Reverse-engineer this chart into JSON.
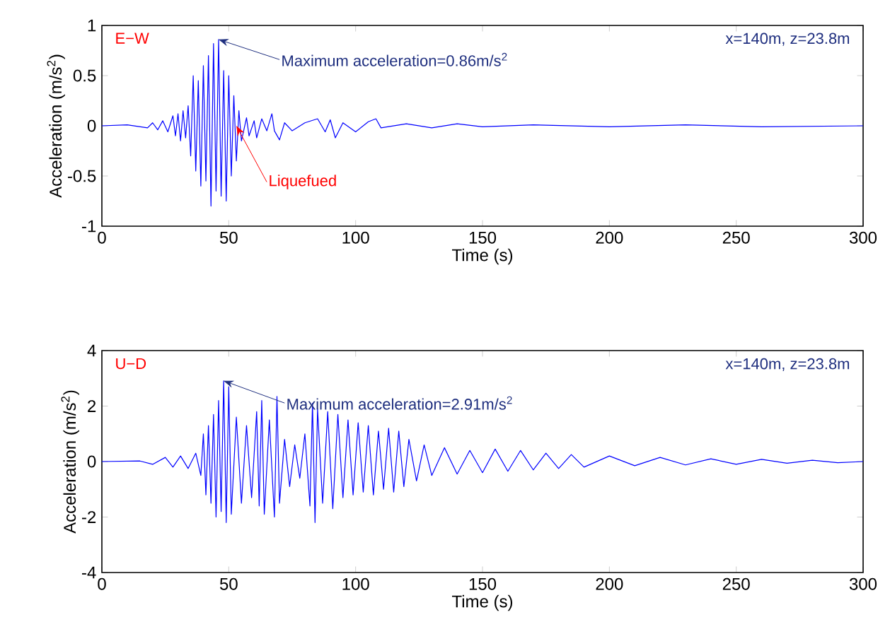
{
  "chart_data": [
    {
      "type": "line",
      "xlabel": "Time (s)",
      "ylabel": "Acceleration (m/s$^{2}$)",
      "xlim": [
        0,
        300
      ],
      "ylim": [
        -1,
        1
      ],
      "xticks": [
        0,
        50,
        100,
        150,
        200,
        250,
        300
      ],
      "yticks": [
        -1,
        -0.5,
        0,
        0.5,
        1
      ],
      "series": [
        {
          "color": "#0000ff",
          "x": [
            0,
            10,
            18,
            20,
            22,
            24,
            26,
            28,
            29,
            30,
            31,
            32,
            33,
            34,
            35,
            36,
            37,
            38,
            39,
            40,
            41,
            42,
            43,
            44,
            45,
            46,
            47,
            48,
            49,
            50,
            51,
            52,
            53,
            54,
            55,
            57,
            58,
            60,
            61,
            63,
            65,
            67,
            68,
            70,
            72,
            75,
            80,
            85,
            88,
            90,
            92,
            95,
            100,
            105,
            108,
            110,
            120,
            130,
            140,
            150,
            170,
            200,
            230,
            260,
            300
          ],
          "values": [
            0,
            0.01,
            -0.02,
            0.03,
            -0.04,
            0.05,
            -0.06,
            0.1,
            -0.1,
            0.12,
            -0.15,
            0.15,
            -0.12,
            0.2,
            -0.3,
            0.5,
            -0.45,
            0.45,
            -0.6,
            0.6,
            -0.55,
            0.7,
            -0.8,
            0.82,
            -0.65,
            0.86,
            -0.7,
            0.55,
            -0.75,
            0.5,
            -0.5,
            0.3,
            -0.35,
            0.15,
            -0.15,
            0.08,
            -0.1,
            0.05,
            -0.12,
            0.07,
            -0.05,
            0.12,
            -0.05,
            -0.14,
            0.03,
            -0.05,
            0.03,
            0.07,
            -0.06,
            0.06,
            -0.12,
            0.03,
            -0.06,
            0.04,
            0.07,
            -0.02,
            0.02,
            -0.02,
            0.02,
            -0.01,
            0.01,
            -0.01,
            0.01,
            -0.01,
            0
          ]
        }
      ],
      "annotations": [
        "E−W",
        "x=140m, z=23.8m",
        {
          "text": "Maximum acceleration=0.86m/s$^{2}$",
          "x": 46,
          "y": 0.86
        },
        {
          "text": "Liquefued",
          "x": 53,
          "y": 0
        }
      ]
    },
    {
      "type": "line",
      "xlabel": "Time (s)",
      "ylabel": "Acceleration (m/s$^{2}$)",
      "xlim": [
        0,
        300
      ],
      "ylim": [
        -4,
        4
      ],
      "xticks": [
        0,
        50,
        100,
        150,
        200,
        250,
        300
      ],
      "yticks": [
        -4,
        -2,
        0,
        2,
        4
      ],
      "series": [
        {
          "color": "#0000ff",
          "x": [
            0,
            15,
            20,
            25,
            28,
            31,
            34,
            37,
            39,
            40,
            41,
            42,
            43,
            44,
            45,
            46,
            47,
            48,
            49,
            50,
            51,
            53,
            55,
            57,
            59,
            61,
            62,
            63,
            64,
            66,
            68,
            69,
            70,
            72,
            74,
            76,
            78,
            80,
            82,
            83,
            84,
            85,
            87,
            89,
            91,
            93,
            95,
            97,
            99,
            101,
            103,
            105,
            107,
            109,
            111,
            113,
            115,
            117,
            119,
            121,
            124,
            127,
            130,
            135,
            140,
            145,
            150,
            155,
            160,
            165,
            170,
            175,
            180,
            185,
            190,
            200,
            210,
            220,
            230,
            240,
            250,
            260,
            270,
            280,
            290,
            300
          ],
          "values": [
            0,
            0.02,
            -0.1,
            0.15,
            -0.2,
            0.2,
            -0.25,
            0.3,
            -0.5,
            1,
            -1.2,
            1.3,
            -1.5,
            1.7,
            -2,
            2.2,
            -1.8,
            2.91,
            -2.2,
            2.7,
            -1.9,
            1.6,
            -1.5,
            1.3,
            -1.3,
            1.8,
            -1.6,
            2.2,
            -1.9,
            1.5,
            -2,
            2.35,
            -1.5,
            0.8,
            -0.9,
            0.6,
            -0.6,
            1,
            -1.6,
            2.1,
            -2.2,
            1.9,
            -1.5,
            1.8,
            -1.7,
            1.7,
            -1.3,
            1.5,
            -1.2,
            1.4,
            -1.1,
            1.3,
            -1.2,
            1.1,
            -1.0,
            1.2,
            -1.1,
            1.1,
            -0.9,
            0.8,
            -0.7,
            0.6,
            -0.5,
            0.5,
            -0.45,
            0.4,
            -0.4,
            0.45,
            -0.35,
            0.4,
            -0.3,
            0.3,
            -0.25,
            0.25,
            -0.2,
            0.2,
            -0.15,
            0.15,
            -0.12,
            0.1,
            -0.1,
            0.08,
            -0.06,
            0.05,
            -0.04,
            0
          ]
        }
      ],
      "annotations": [
        "U−D",
        "x=140m, z=23.8m",
        {
          "text": "Maximum acceleration=2.91m/s$^{2}$",
          "x": 48,
          "y": 2.91
        }
      ]
    }
  ]
}
